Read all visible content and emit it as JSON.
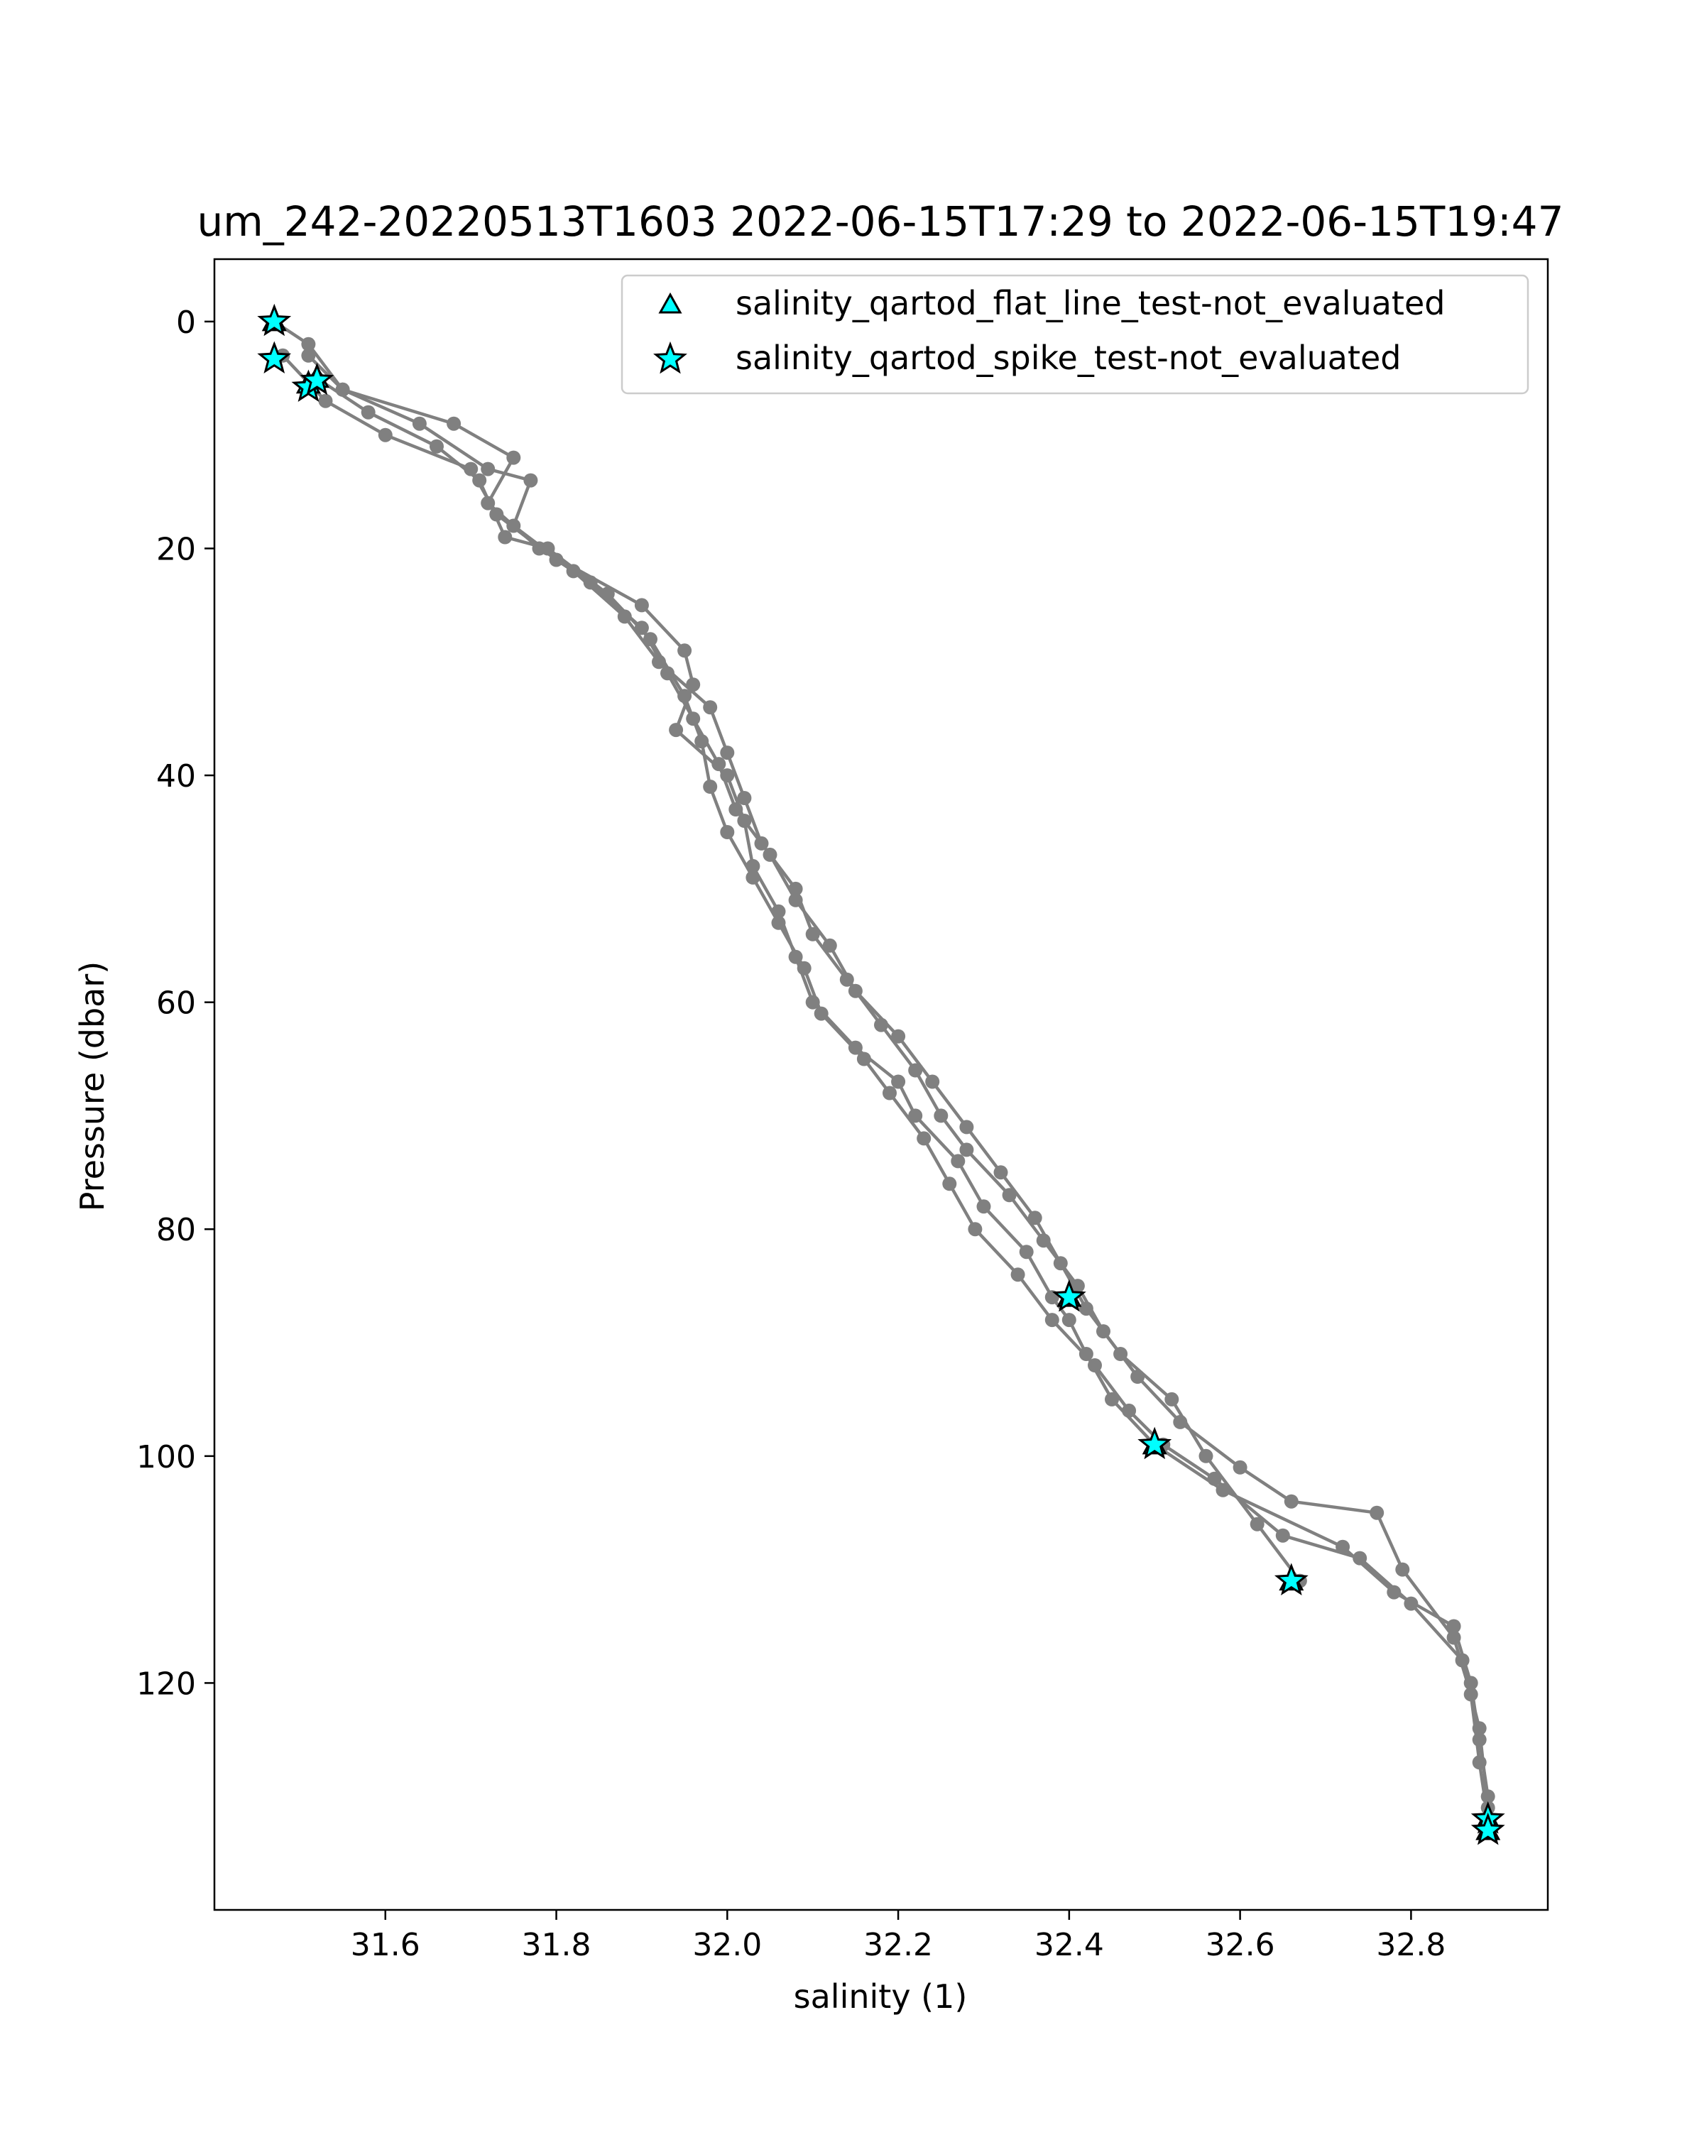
{
  "chart_data": {
    "type": "line",
    "title": "um_242-20220513T1603 2022-06-15T17:29 to 2022-06-15T19:47",
    "xlabel": "salinity (1)",
    "ylabel": "Pressure (dbar)",
    "xlim": [
      31.4,
      32.96
    ],
    "ylim": [
      140,
      -5.5
    ],
    "y_inverted": true,
    "x_ticks": [
      "31.6",
      "31.8",
      "32.0",
      "32.2",
      "32.4",
      "32.6",
      "32.8"
    ],
    "y_ticks": [
      "0",
      "20",
      "40",
      "60",
      "80",
      "100",
      "120"
    ],
    "grid": false,
    "legend_position": "upper-right",
    "colors": {
      "profile": "#808080",
      "flag_fill": "#00ffff",
      "flag_edge": "#000000"
    },
    "series": [
      {
        "kind": "profile",
        "x": [
          31.47,
          31.51,
          31.55,
          31.68,
          31.75,
          31.72,
          31.78,
          31.9,
          31.95,
          31.96,
          31.94,
          32.0,
          32.02,
          32.03,
          32.06,
          32.08,
          32.1,
          32.15,
          32.2,
          32.22,
          32.27,
          32.3,
          32.35,
          32.38,
          32.4,
          32.42,
          32.45,
          32.5,
          32.58,
          32.72,
          32.78,
          32.85,
          32.87,
          32.88,
          32.89,
          32.89
        ],
        "y": [
          0,
          2,
          6,
          9,
          12,
          16,
          20,
          25,
          29,
          32,
          36,
          40,
          44,
          48,
          52,
          56,
          60,
          64,
          67,
          70,
          74,
          78,
          82,
          86,
          88,
          91,
          95,
          99,
          103,
          108,
          112,
          115,
          120,
          125,
          130,
          133
        ]
      },
      {
        "kind": "profile",
        "x": [
          31.51,
          31.55,
          31.64,
          31.72,
          31.77,
          31.75,
          31.82,
          31.88,
          31.92,
          31.98,
          32.0,
          32.02,
          32.04,
          32.08,
          32.1,
          32.14,
          32.18,
          32.22,
          32.25,
          32.28,
          32.33,
          32.37,
          32.41,
          32.44,
          32.48,
          32.53,
          32.6,
          32.66,
          32.76,
          32.79,
          32.85,
          32.87,
          32.88,
          32.89
        ],
        "y": [
          3,
          6,
          9,
          13,
          14,
          18,
          22,
          26,
          30,
          34,
          38,
          42,
          46,
          50,
          54,
          58,
          62,
          66,
          70,
          73,
          77,
          81,
          85,
          89,
          93,
          97,
          101,
          104,
          105,
          110,
          116,
          121,
          127,
          132
        ]
      },
      {
        "kind": "profile",
        "x": [
          31.48,
          31.53,
          31.6,
          31.7,
          31.73,
          31.8,
          31.84,
          31.9,
          31.93,
          31.96,
          31.99,
          32.01,
          32.05,
          32.08,
          32.12,
          32.15,
          32.2,
          32.24,
          32.28,
          32.32,
          32.36,
          32.39,
          32.42,
          32.46,
          32.52,
          32.56,
          32.62,
          32.67
        ],
        "y": [
          3,
          7,
          10,
          13,
          17,
          21,
          23,
          27,
          31,
          35,
          39,
          43,
          47,
          51,
          55,
          59,
          63,
          67,
          71,
          75,
          79,
          83,
          87,
          91,
          95,
          100,
          106,
          111
        ]
      },
      {
        "kind": "profile",
        "x": [
          31.52,
          31.58,
          31.66,
          31.71,
          31.74,
          31.79,
          31.86,
          31.91,
          31.95,
          31.97,
          31.98,
          32.0,
          32.03,
          32.06,
          32.09,
          32.11,
          32.16,
          32.19,
          32.23,
          32.26,
          32.29,
          32.34,
          32.38,
          32.43,
          32.47,
          32.51,
          32.57,
          32.65,
          32.74,
          32.8,
          32.86,
          32.88,
          32.89
        ],
        "y": [
          5,
          8,
          11,
          14,
          19,
          20,
          24,
          28,
          33,
          37,
          41,
          45,
          49,
          53,
          57,
          61,
          65,
          68,
          72,
          76,
          80,
          84,
          88,
          92,
          96,
          99,
          102,
          107,
          109,
          113,
          118,
          124,
          131
        ]
      },
      {
        "kind": "flag",
        "name": "salinity_qartod_flat_line_test-not_evaluated",
        "marker": "triangle",
        "x": [
          31.47,
          31.51,
          31.52,
          32.4,
          32.5,
          32.66,
          32.89,
          32.89
        ],
        "y": [
          0,
          5.5,
          5,
          86,
          99,
          111,
          132,
          133
        ]
      },
      {
        "kind": "flag",
        "name": "salinity_qartod_spike_test-not_evaluated",
        "marker": "star",
        "x": [
          31.47,
          31.47,
          31.51,
          31.52,
          32.4,
          32.5,
          32.66,
          32.89,
          32.89
        ],
        "y": [
          0,
          3.3,
          5.8,
          5.2,
          86,
          99,
          111,
          132,
          133
        ]
      }
    ]
  }
}
